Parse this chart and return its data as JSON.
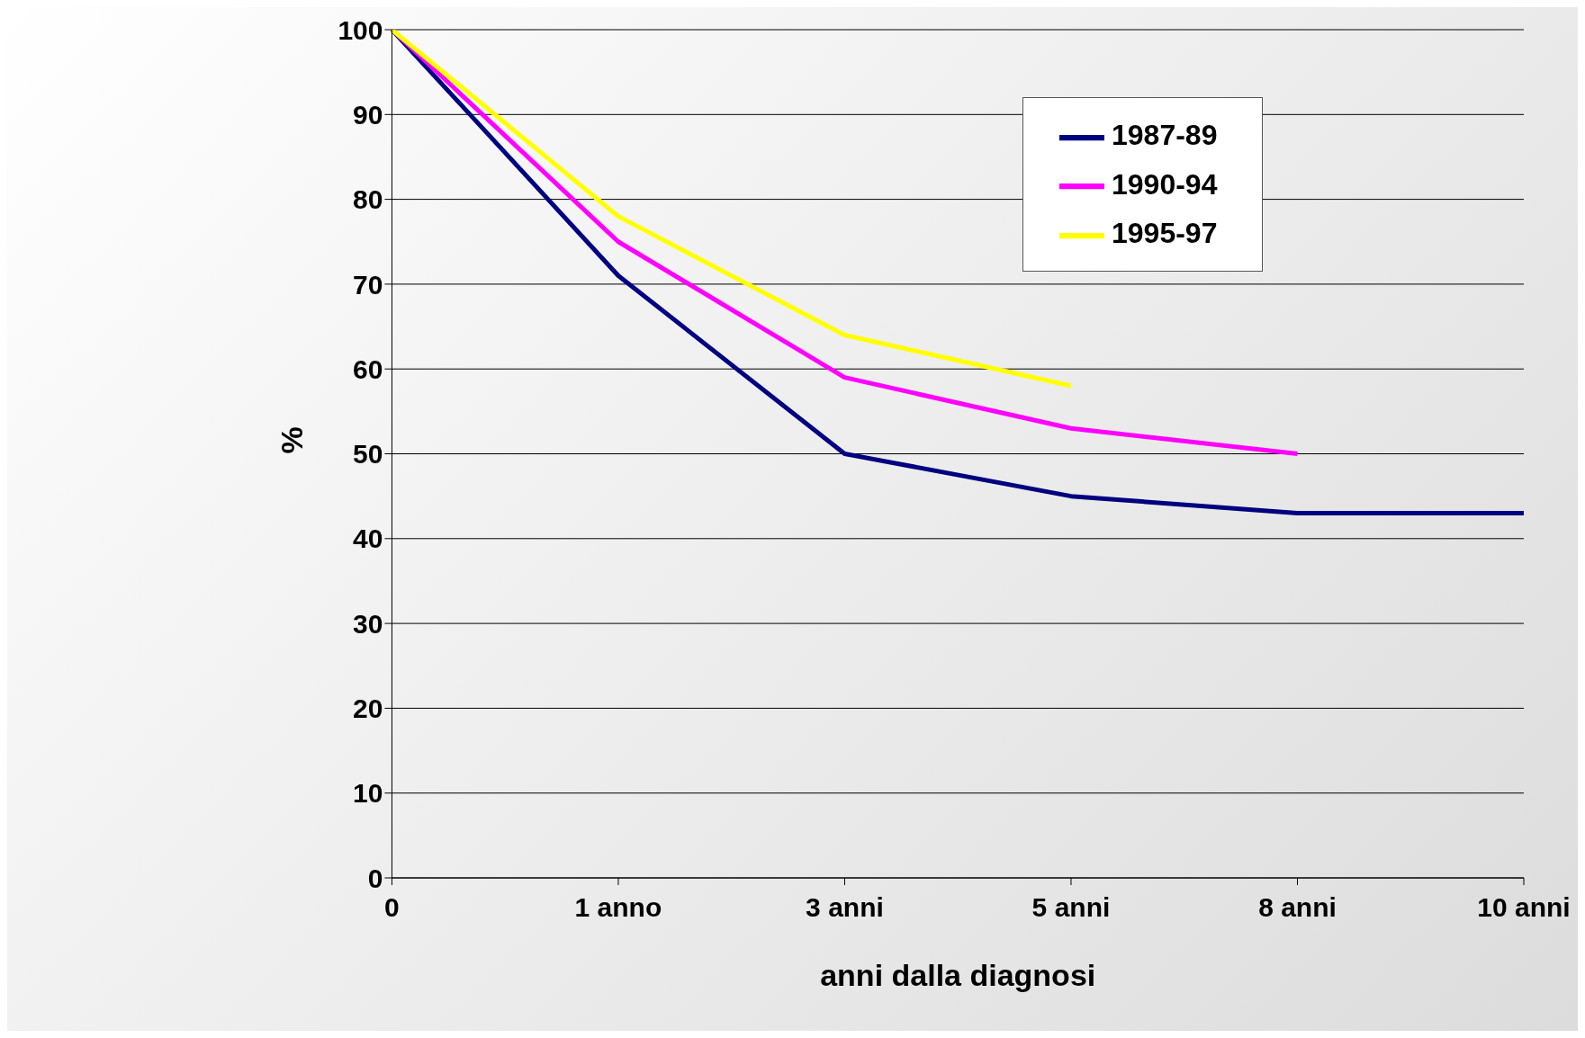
{
  "chart_data": {
    "type": "line",
    "xlabel": "anni dalla diagnosi",
    "ylabel": "%",
    "categories": [
      "0",
      "1 anno",
      "3 anni",
      "5 anni",
      "8 anni",
      "10 anni"
    ],
    "series": [
      {
        "name": "1987-89",
        "color": "#000080",
        "values": [
          100,
          71,
          50,
          45,
          43,
          43
        ]
      },
      {
        "name": "1990-94",
        "color": "#ff00ff",
        "values": [
          100,
          75,
          59,
          53,
          50,
          null
        ]
      },
      {
        "name": "1995-97",
        "color": "#ffff00",
        "values": [
          100,
          78,
          64,
          58,
          null,
          null
        ]
      }
    ],
    "ylim": [
      0,
      100
    ],
    "yticks": [
      0,
      10,
      20,
      30,
      40,
      50,
      60,
      70,
      80,
      90,
      100
    ],
    "grid": "y",
    "legend": "top right",
    "marker": "none",
    "line_style": "solid"
  }
}
